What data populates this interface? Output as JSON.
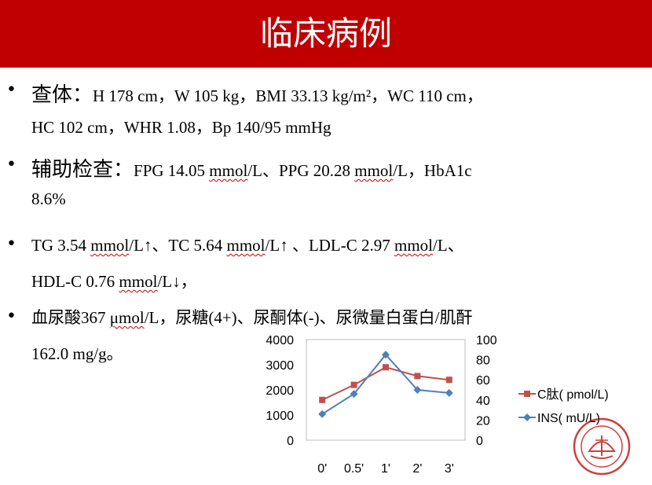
{
  "slide": {
    "title": "临床病例"
  },
  "bullets": [
    {
      "lines": [
        [
          {
            "t": "查体：",
            "big": true
          },
          {
            "t": "H 178 cm，W 105 kg，BMI 33.13 kg/m²，WC 110 cm，"
          }
        ],
        [
          {
            "t": "HC 102 cm，WHR 1.08，Bp 140/95 mmHg"
          }
        ]
      ]
    },
    {
      "lines": [
        [
          {
            "t": "辅助检查：",
            "big": true
          },
          {
            "t": "FPG 14.05 "
          },
          {
            "t": "mmol",
            "sq": true
          },
          {
            "t": "/L、PPG 20.28 "
          },
          {
            "t": "mmol",
            "sq": true
          },
          {
            "t": "/L，HbA1c"
          }
        ],
        [
          {
            "t": "8.6%"
          }
        ]
      ]
    },
    {
      "lines": [
        [
          {
            "t": "TG 3.54 "
          },
          {
            "t": "mmol",
            "sq": true
          },
          {
            "t": "/L↑、TC 5.64 "
          },
          {
            "t": "mmol",
            "sq": true
          },
          {
            "t": "/L↑ 、LDL-C 2.97 "
          },
          {
            "t": "mmol",
            "sq": true
          },
          {
            "t": "/L、"
          }
        ],
        [
          {
            "t": "HDL-C 0.76 "
          },
          {
            "t": "mmol",
            "sq": true
          },
          {
            "t": "/L↓，"
          }
        ]
      ]
    },
    {
      "lines": [
        [
          {
            "t": "血尿酸367 "
          },
          {
            "t": "μmol",
            "sq": true
          },
          {
            "t": "/L，尿糖(4+)、尿酮体(-)、尿微量白蛋白/肌酐"
          }
        ],
        [
          {
            "t": "162.0 mg/g。"
          }
        ]
      ]
    }
  ],
  "chart_data": {
    "type": "line",
    "categories": [
      "0'",
      "0.5'",
      "1'",
      "2'",
      "3'"
    ],
    "series": [
      {
        "name": "C肽( pmol/L)",
        "values": [
          1600,
          2200,
          2900,
          2550,
          2400
        ],
        "axis": "left",
        "color": "#c0504d",
        "marker": "square"
      },
      {
        "name": "INS( mU/L)",
        "values": [
          26,
          46,
          85,
          50,
          47
        ],
        "axis": "right",
        "color": "#4f81bd",
        "marker": "diamond"
      }
    ],
    "left_axis": {
      "ylim": [
        0,
        4000
      ],
      "ticks": [
        "0",
        "1000",
        "2000",
        "3000",
        "4000"
      ]
    },
    "right_axis": {
      "ylim": [
        0,
        100
      ],
      "ticks": [
        "0",
        "20",
        "40",
        "60",
        "80",
        "100"
      ]
    },
    "legend_placement": "right",
    "grid": false
  },
  "icons": {
    "bullet": "•",
    "seal": "university-seal-icon"
  }
}
